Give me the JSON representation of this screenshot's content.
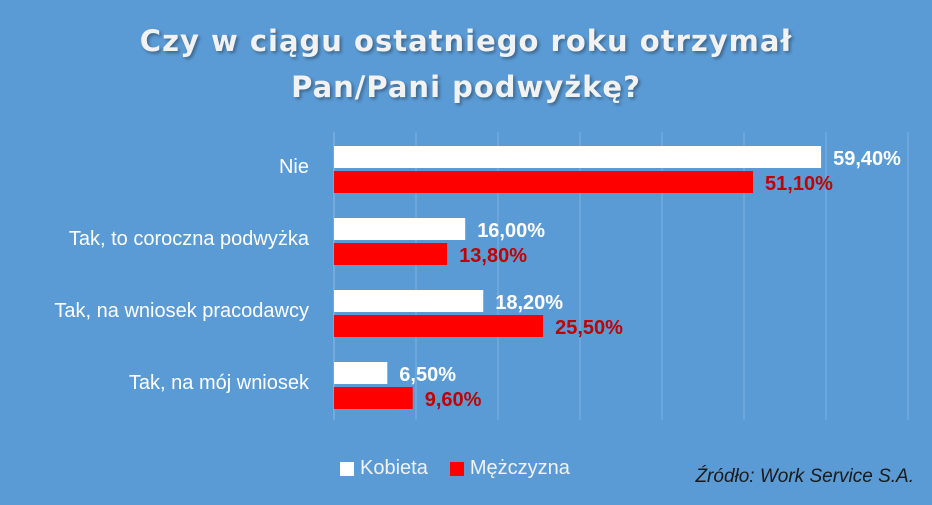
{
  "chart_data": {
    "type": "bar",
    "orientation": "horizontal",
    "title_lines": [
      "Czy w ciągu ostatniego roku otrzymał",
      "Pan/Pani podwyżkę?"
    ],
    "categories": [
      "Nie",
      "Tak, to coroczna podwyżka",
      "Tak, na wniosek pracodawcy",
      "Tak, na mój wniosek"
    ],
    "series": [
      {
        "name": "Kobieta",
        "color": "#FFFFFF",
        "label_color": "#FFFFFF",
        "values": [
          59.4,
          16.0,
          18.2,
          6.5
        ],
        "labels": [
          "59,40%",
          "16,00%",
          "18,20%",
          "6,50%"
        ]
      },
      {
        "name": "Mężczyzna",
        "color": "#FF0000",
        "label_color": "#C00000",
        "values": [
          51.1,
          13.8,
          25.5,
          9.6
        ],
        "labels": [
          "51,10%",
          "13,80%",
          "25,50%",
          "9,60%"
        ]
      }
    ],
    "xlim": [
      0,
      70
    ],
    "grid": true,
    "legend": "bottom-center",
    "source": "Źródło: Work Service  S.A."
  }
}
